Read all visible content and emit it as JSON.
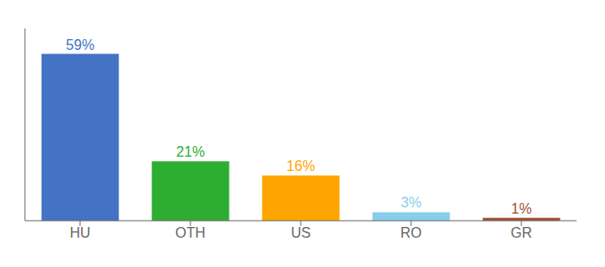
{
  "chart_data": {
    "type": "bar",
    "categories": [
      "HU",
      "OTH",
      "US",
      "RO",
      "GR"
    ],
    "values": [
      59,
      21,
      16,
      3,
      1
    ],
    "colors": [
      "#4472C4",
      "#2EAD33",
      "#FFA500",
      "#87CEEB",
      "#A0522D"
    ],
    "value_labels": [
      "59%",
      "21%",
      "16%",
      "3%",
      "1%"
    ],
    "data_labels": true,
    "ylim": [
      0,
      68
    ],
    "tick_labels": "x",
    "grid": false
  }
}
